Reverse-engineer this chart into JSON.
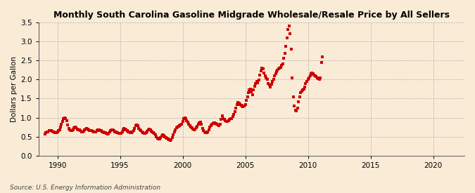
{
  "title": "Monthly South Carolina Gasoline Midgrade Wholesale/Resale Price by All Sellers",
  "ylabel": "Dollars per Gallon",
  "source": "Source: U.S. Energy Information Administration",
  "background_color": "#faebd7",
  "marker_color": "#cc0000",
  "xlim": [
    1988.5,
    2022.5
  ],
  "ylim": [
    0.0,
    3.5
  ],
  "xticks": [
    1990,
    1995,
    2000,
    2005,
    2010,
    2015,
    2020
  ],
  "yticks": [
    0.0,
    0.5,
    1.0,
    1.5,
    2.0,
    2.5,
    3.0,
    3.5
  ],
  "data": {
    "dates": [
      1989.0,
      1989.08,
      1989.17,
      1989.25,
      1989.33,
      1989.42,
      1989.5,
      1989.58,
      1989.67,
      1989.75,
      1989.83,
      1989.92,
      1990.0,
      1990.08,
      1990.17,
      1990.25,
      1990.33,
      1990.42,
      1990.5,
      1990.58,
      1990.67,
      1990.75,
      1990.83,
      1990.92,
      1991.0,
      1991.08,
      1991.17,
      1991.25,
      1991.33,
      1991.42,
      1991.5,
      1991.58,
      1991.67,
      1991.75,
      1991.83,
      1991.92,
      1992.0,
      1992.08,
      1992.17,
      1992.25,
      1992.33,
      1992.42,
      1992.5,
      1992.58,
      1992.67,
      1992.75,
      1992.83,
      1992.92,
      1993.0,
      1993.08,
      1993.17,
      1993.25,
      1993.33,
      1993.42,
      1993.5,
      1993.58,
      1993.67,
      1993.75,
      1993.83,
      1993.92,
      1994.0,
      1994.08,
      1994.17,
      1994.25,
      1994.33,
      1994.42,
      1994.5,
      1994.58,
      1994.67,
      1994.75,
      1994.83,
      1994.92,
      1995.0,
      1995.08,
      1995.17,
      1995.25,
      1995.33,
      1995.42,
      1995.5,
      1995.58,
      1995.67,
      1995.75,
      1995.83,
      1995.92,
      1996.0,
      1996.08,
      1996.17,
      1996.25,
      1996.33,
      1996.42,
      1996.5,
      1996.58,
      1996.67,
      1996.75,
      1996.83,
      1996.92,
      1997.0,
      1997.08,
      1997.17,
      1997.25,
      1997.33,
      1997.42,
      1997.5,
      1997.58,
      1997.67,
      1997.75,
      1997.83,
      1997.92,
      1998.0,
      1998.08,
      1998.17,
      1998.25,
      1998.33,
      1998.42,
      1998.5,
      1998.58,
      1998.67,
      1998.75,
      1998.83,
      1998.92,
      1999.0,
      1999.08,
      1999.17,
      1999.25,
      1999.33,
      1999.42,
      1999.5,
      1999.58,
      1999.67,
      1999.75,
      1999.83,
      1999.92,
      2000.0,
      2000.08,
      2000.17,
      2000.25,
      2000.33,
      2000.42,
      2000.5,
      2000.58,
      2000.67,
      2000.75,
      2000.83,
      2000.92,
      2001.0,
      2001.08,
      2001.17,
      2001.25,
      2001.33,
      2001.42,
      2001.5,
      2001.58,
      2001.67,
      2001.75,
      2001.83,
      2001.92,
      2002.0,
      2002.08,
      2002.17,
      2002.25,
      2002.33,
      2002.42,
      2002.5,
      2002.58,
      2002.67,
      2002.75,
      2002.83,
      2002.92,
      2003.0,
      2003.08,
      2003.17,
      2003.25,
      2003.33,
      2003.42,
      2003.5,
      2003.58,
      2003.67,
      2003.75,
      2003.83,
      2003.92,
      2004.0,
      2004.08,
      2004.17,
      2004.25,
      2004.33,
      2004.42,
      2004.5,
      2004.58,
      2004.67,
      2004.75,
      2004.83,
      2004.92,
      2005.0,
      2005.08,
      2005.17,
      2005.25,
      2005.33,
      2005.42,
      2005.5,
      2005.58,
      2005.67,
      2005.75,
      2005.83,
      2005.92,
      2006.0,
      2006.08,
      2006.17,
      2006.25,
      2006.33,
      2006.42,
      2006.5,
      2006.58,
      2006.67,
      2006.75,
      2006.83,
      2006.92,
      2007.0,
      2007.08,
      2007.17,
      2007.25,
      2007.33,
      2007.42,
      2007.5,
      2007.58,
      2007.67,
      2007.75,
      2007.83,
      2007.92,
      2008.0,
      2008.08,
      2008.17,
      2008.25,
      2008.33,
      2008.42,
      2008.5,
      2008.58,
      2008.67,
      2008.75,
      2008.83,
      2008.92,
      2009.0,
      2009.08,
      2009.17,
      2009.25,
      2009.33,
      2009.42,
      2009.5,
      2009.58,
      2009.67,
      2009.75,
      2009.83,
      2009.92,
      2010.0,
      2010.08,
      2010.17,
      2010.25,
      2010.33,
      2010.42,
      2010.5,
      2010.58,
      2010.67,
      2010.75,
      2010.83,
      2010.92,
      2011.0,
      2011.08,
      2011.17
    ],
    "prices": [
      0.57,
      0.6,
      0.62,
      0.63,
      0.65,
      0.66,
      0.65,
      0.64,
      0.63,
      0.62,
      0.61,
      0.6,
      0.62,
      0.65,
      0.68,
      0.75,
      0.82,
      0.9,
      0.97,
      1.0,
      0.98,
      0.92,
      0.8,
      0.72,
      0.68,
      0.66,
      0.65,
      0.68,
      0.73,
      0.76,
      0.73,
      0.7,
      0.68,
      0.67,
      0.65,
      0.63,
      0.62,
      0.64,
      0.67,
      0.7,
      0.72,
      0.7,
      0.68,
      0.66,
      0.65,
      0.65,
      0.64,
      0.62,
      0.62,
      0.63,
      0.65,
      0.68,
      0.68,
      0.66,
      0.65,
      0.63,
      0.62,
      0.61,
      0.6,
      0.59,
      0.57,
      0.59,
      0.62,
      0.66,
      0.68,
      0.67,
      0.65,
      0.63,
      0.62,
      0.61,
      0.6,
      0.59,
      0.58,
      0.59,
      0.62,
      0.67,
      0.71,
      0.7,
      0.68,
      0.65,
      0.63,
      0.62,
      0.61,
      0.6,
      0.62,
      0.65,
      0.72,
      0.78,
      0.8,
      0.78,
      0.72,
      0.68,
      0.65,
      0.63,
      0.6,
      0.59,
      0.58,
      0.6,
      0.64,
      0.68,
      0.69,
      0.67,
      0.64,
      0.62,
      0.6,
      0.58,
      0.54,
      0.5,
      0.46,
      0.44,
      0.43,
      0.47,
      0.52,
      0.55,
      0.53,
      0.5,
      0.47,
      0.45,
      0.43,
      0.41,
      0.4,
      0.42,
      0.48,
      0.55,
      0.62,
      0.68,
      0.73,
      0.75,
      0.77,
      0.78,
      0.8,
      0.83,
      0.9,
      0.98,
      1.0,
      0.97,
      0.92,
      0.88,
      0.82,
      0.78,
      0.75,
      0.73,
      0.7,
      0.68,
      0.7,
      0.73,
      0.77,
      0.82,
      0.87,
      0.88,
      0.82,
      0.72,
      0.65,
      0.62,
      0.6,
      0.6,
      0.62,
      0.68,
      0.75,
      0.78,
      0.82,
      0.85,
      0.87,
      0.86,
      0.84,
      0.82,
      0.8,
      0.78,
      0.82,
      0.95,
      1.05,
      0.98,
      0.95,
      0.92,
      0.9,
      0.9,
      0.92,
      0.95,
      0.97,
      0.98,
      1.02,
      1.08,
      1.15,
      1.25,
      1.35,
      1.4,
      1.38,
      1.35,
      1.32,
      1.3,
      1.28,
      1.3,
      1.35,
      1.45,
      1.55,
      1.65,
      1.72,
      1.75,
      1.68,
      1.6,
      1.72,
      1.82,
      1.9,
      1.95,
      1.92,
      1.98,
      2.12,
      2.22,
      2.3,
      2.28,
      2.18,
      2.1,
      2.05,
      2.0,
      1.9,
      1.85,
      1.8,
      1.88,
      1.95,
      2.0,
      2.1,
      2.15,
      2.2,
      2.25,
      2.28,
      2.3,
      2.32,
      2.38,
      2.42,
      2.55,
      2.68,
      2.88,
      3.1,
      3.32,
      3.4,
      3.2,
      2.8,
      2.05,
      1.55,
      1.3,
      1.2,
      1.18,
      1.25,
      1.42,
      1.55,
      1.65,
      1.7,
      1.72,
      1.75,
      1.8,
      1.9,
      1.95,
      2.0,
      2.05,
      2.1,
      2.15,
      2.18,
      2.15,
      2.12,
      2.1,
      2.08,
      2.05,
      2.02,
      2.0,
      2.05,
      2.45,
      2.6
    ]
  }
}
